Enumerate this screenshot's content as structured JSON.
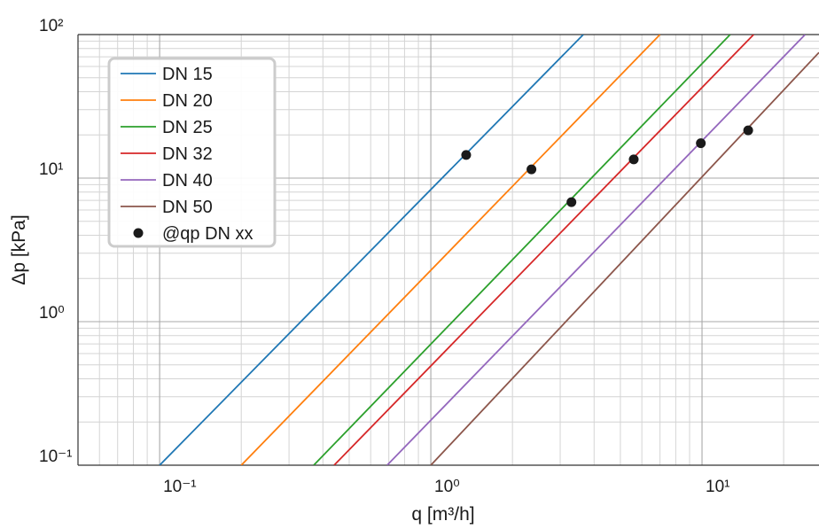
{
  "chart_data": {
    "type": "line",
    "xscale": "log",
    "yscale": "log",
    "xlabel": "q [m³/h]",
    "ylabel": "Δp [kPa]",
    "xlim": [
      0.05,
      27
    ],
    "ylim": [
      0.1,
      100
    ],
    "x_ticks": [
      {
        "value": 0.1,
        "label": "10⁻¹"
      },
      {
        "value": 1,
        "label": "10⁰"
      },
      {
        "value": 10,
        "label": "10¹"
      }
    ],
    "y_ticks": [
      {
        "value": 0.1,
        "label": "10⁻¹"
      },
      {
        "value": 1,
        "label": "10⁰"
      },
      {
        "value": 10,
        "label": "10¹"
      },
      {
        "value": 100,
        "label": "10²"
      }
    ],
    "grid": true,
    "legend_position": "top-left",
    "series": [
      {
        "name": "DN 15",
        "color": "#1f77b4",
        "points": [
          [
            0.1,
            0.1
          ],
          [
            3.65,
            100
          ]
        ]
      },
      {
        "name": "DN 20",
        "color": "#ff7f0e",
        "points": [
          [
            0.2,
            0.1
          ],
          [
            7.0,
            100
          ]
        ]
      },
      {
        "name": "DN 25",
        "color": "#2ca02c",
        "points": [
          [
            0.37,
            0.1
          ],
          [
            12.7,
            100
          ]
        ]
      },
      {
        "name": "DN 32",
        "color": "#d62728",
        "points": [
          [
            0.44,
            0.1
          ],
          [
            15.5,
            100
          ]
        ]
      },
      {
        "name": "DN 40",
        "color": "#9467bd",
        "points": [
          [
            0.69,
            0.1
          ],
          [
            24.0,
            100
          ]
        ]
      },
      {
        "name": "DN 50",
        "color": "#8c564b",
        "points": [
          [
            1.0,
            0.1
          ],
          [
            27.0,
            75
          ]
        ]
      }
    ],
    "markers": {
      "name": "@qp DN xx",
      "color": "#1a1a1a",
      "points": [
        [
          1.35,
          14.5
        ],
        [
          2.35,
          11.5
        ],
        [
          3.3,
          6.8
        ],
        [
          5.6,
          13.5
        ],
        [
          9.9,
          17.5
        ],
        [
          14.8,
          21.5
        ]
      ]
    }
  }
}
